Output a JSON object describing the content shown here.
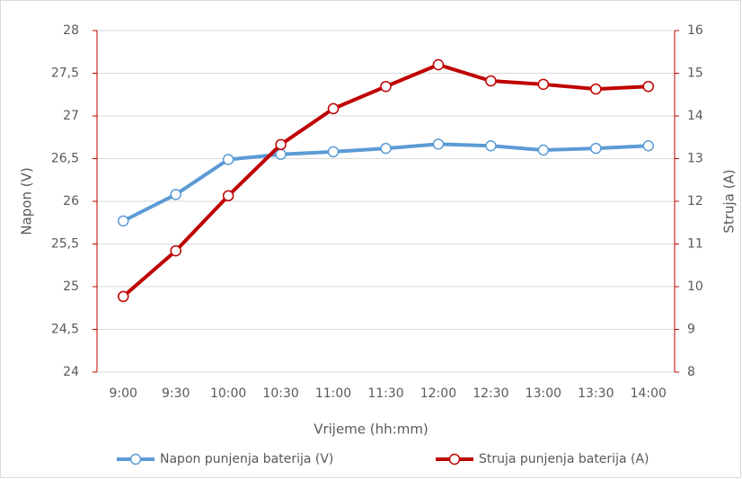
{
  "chart_data": {
    "type": "line",
    "xlabel": "Vrijeme (hh:mm)",
    "ylabel": "Napon (V)",
    "y2label": "Struja (A)",
    "categories": [
      "9:00",
      "9:30",
      "10:00",
      "10:30",
      "11:00",
      "11:30",
      "12:00",
      "12:30",
      "13:00",
      "13:30",
      "14:00"
    ],
    "series": [
      {
        "name": "Napon punjenja baterija (V)",
        "color": "#5b9bd5",
        "axis": "y",
        "values": [
          25.77,
          26.08,
          26.49,
          26.55,
          26.58,
          26.62,
          26.67,
          26.65,
          26.6,
          26.62,
          26.65
        ]
      },
      {
        "name": "Struja punjenja baterija (A)",
        "color": "#c00000",
        "axis": "y2",
        "values": [
          9.77,
          10.84,
          12.13,
          13.33,
          14.17,
          14.69,
          15.2,
          14.82,
          14.74,
          14.63,
          14.69
        ]
      }
    ],
    "ylim": [
      24,
      28
    ],
    "yticks": [
      24,
      {
        "value": 24.5,
        "label": "24,5"
      },
      25,
      {
        "value": 25.5,
        "label": "25,5"
      },
      26,
      {
        "value": 26.5,
        "label": "26,5"
      },
      27,
      {
        "value": 27.5,
        "label": "27,5"
      },
      28
    ],
    "y2lim": [
      8,
      16
    ],
    "y2ticks": [
      8,
      9,
      10,
      11,
      12,
      13,
      14,
      15,
      16
    ],
    "grid": true,
    "legend": "bottom"
  }
}
